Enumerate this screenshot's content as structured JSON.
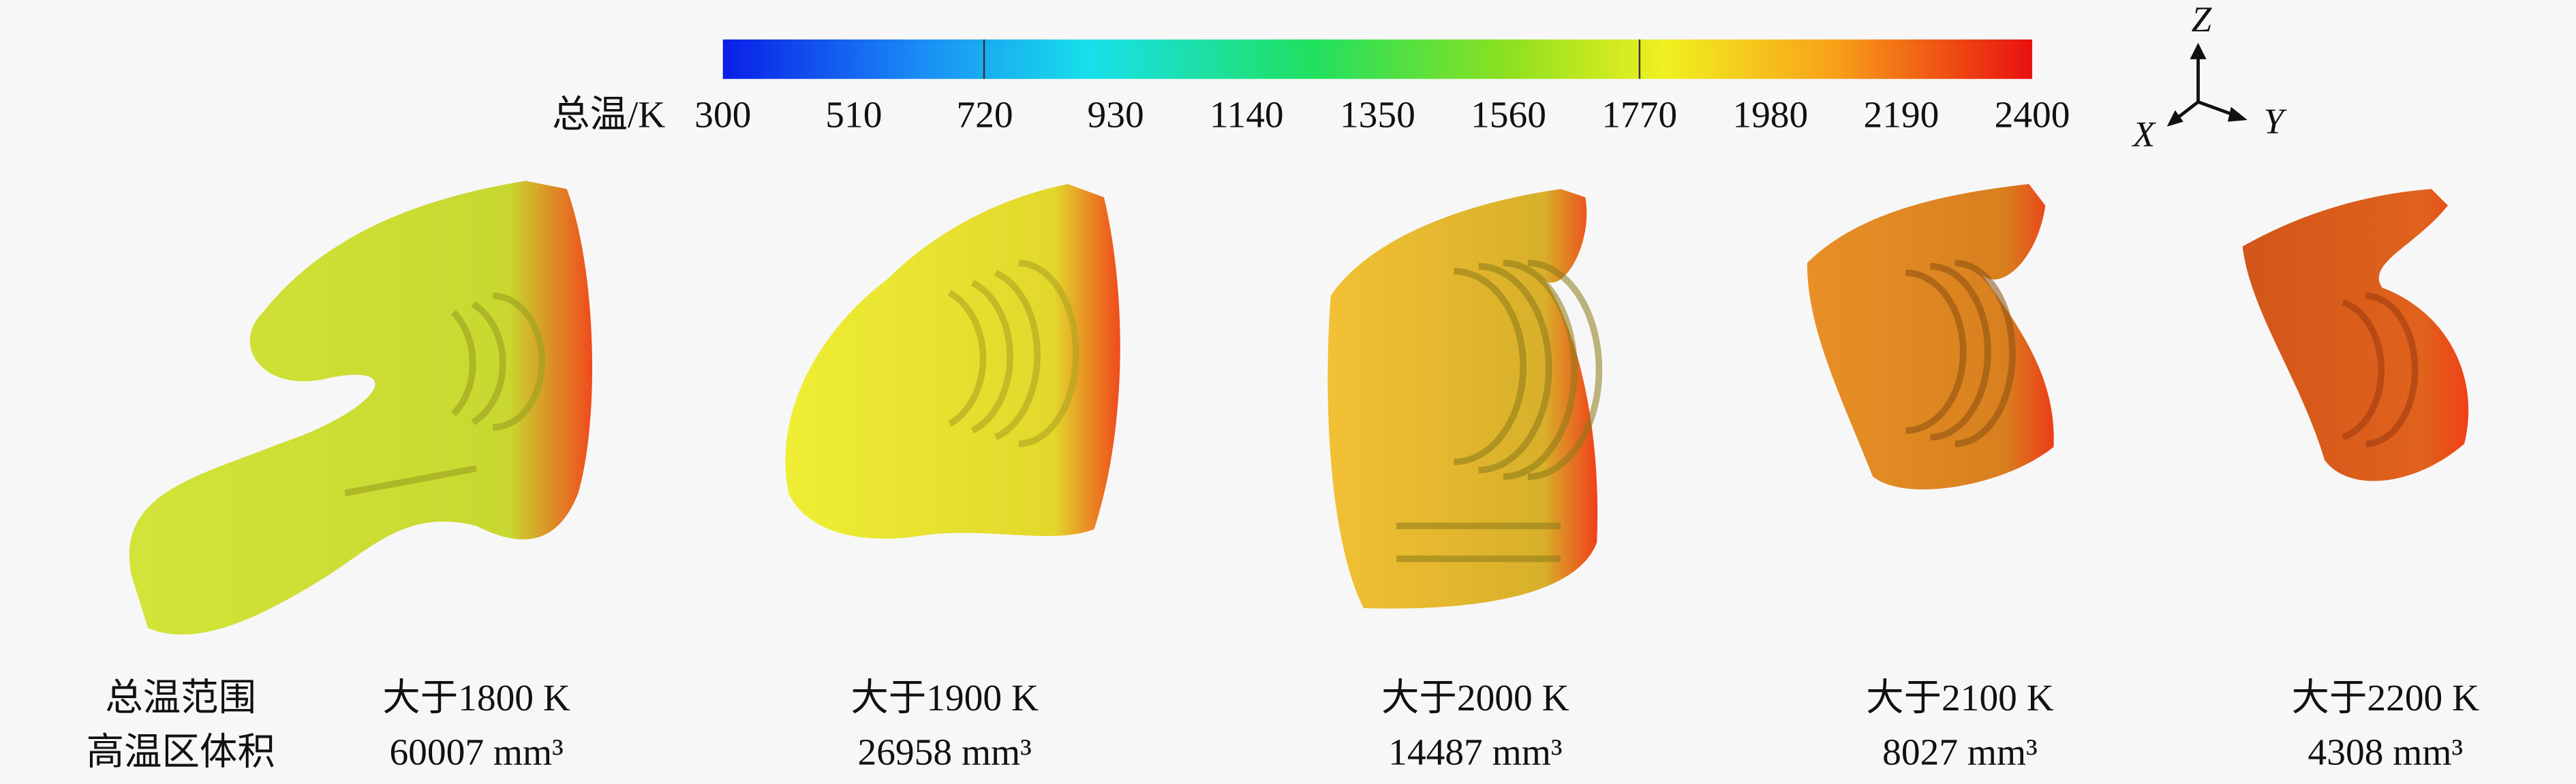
{
  "colorbar": {
    "label": "总温/K",
    "ticks": [
      "300",
      "510",
      "720",
      "930",
      "1140",
      "1350",
      "1560",
      "1770",
      "1980",
      "2190",
      "2400"
    ]
  },
  "axes": {
    "z": "Z",
    "x": "X",
    "y": "Y"
  },
  "row_labels": [
    "总温范围",
    "高温区体积"
  ],
  "panels": [
    {
      "range": "大于1800 K",
      "volume": "60007 mm³"
    },
    {
      "range": "大于1900 K",
      "volume": "26958 mm³"
    },
    {
      "range": "大于2000 K",
      "volume": "14487 mm³"
    },
    {
      "range": "大于2100 K",
      "volume": "8027 mm³"
    },
    {
      "range": "大于2200 K",
      "volume": "4308 mm³"
    }
  ]
}
